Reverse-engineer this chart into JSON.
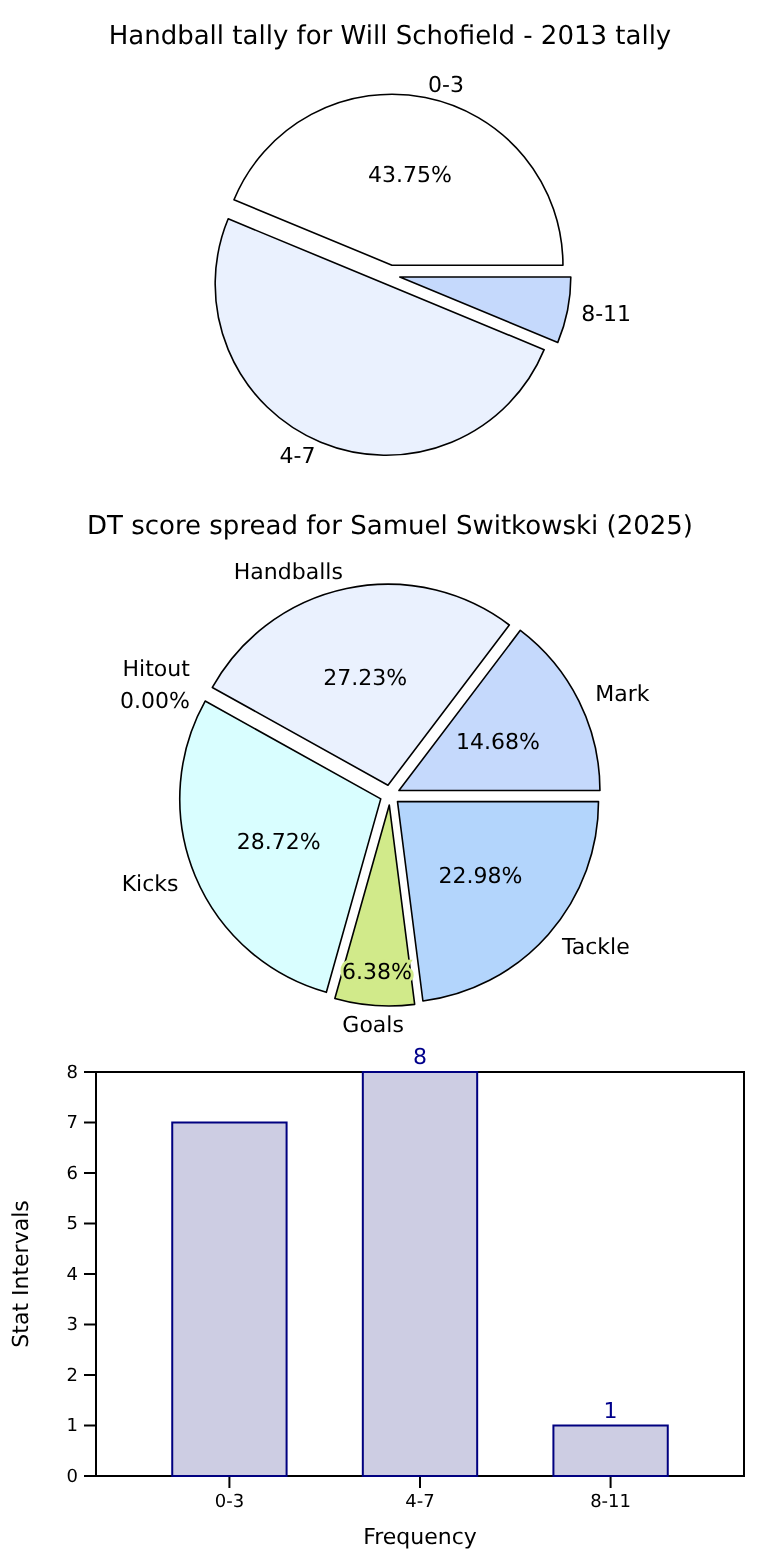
{
  "chart_data": [
    {
      "type": "pie",
      "title": "Handball tally for Will Schofield - 2013 tally",
      "categories": [
        "0-3",
        "4-7",
        "8-11"
      ],
      "values": [
        43.75,
        50,
        6.25
      ],
      "colors": [
        "#ffffff",
        "#eaf1fe",
        "#c5d9fc"
      ],
      "value_labels": [
        "43.75%",
        null,
        null
      ]
    },
    {
      "type": "pie",
      "title": "DT score spread for Samuel Switkowski (2025)",
      "categories": [
        "Mark",
        "Handballs",
        "Hitout",
        "Kicks",
        "Goals",
        "Tackle"
      ],
      "values": [
        14.68,
        27.23,
        0,
        28.72,
        6.38,
        22.98
      ],
      "colors": [
        "#c5d9fc",
        "#eaf1fe",
        null,
        "#d9feff",
        "#d1ea8a",
        "#b3d5fc"
      ],
      "value_labels": [
        "14.68%",
        "27.23%",
        "0.00%",
        "28.72%",
        "6.38%",
        "22.98%"
      ]
    },
    {
      "type": "bar",
      "xlabel": "Frequency",
      "ylabel": "Stat Intervals",
      "categories": [
        "0-3",
        "4-7",
        "8-11"
      ],
      "values": [
        7,
        8,
        1
      ],
      "color": "#cdcde3",
      "ylim": [
        0,
        8
      ],
      "yticks": [
        0,
        1,
        2,
        3,
        4,
        5,
        6,
        7,
        8
      ],
      "value_labels": [
        null,
        "8",
        "1"
      ]
    }
  ]
}
